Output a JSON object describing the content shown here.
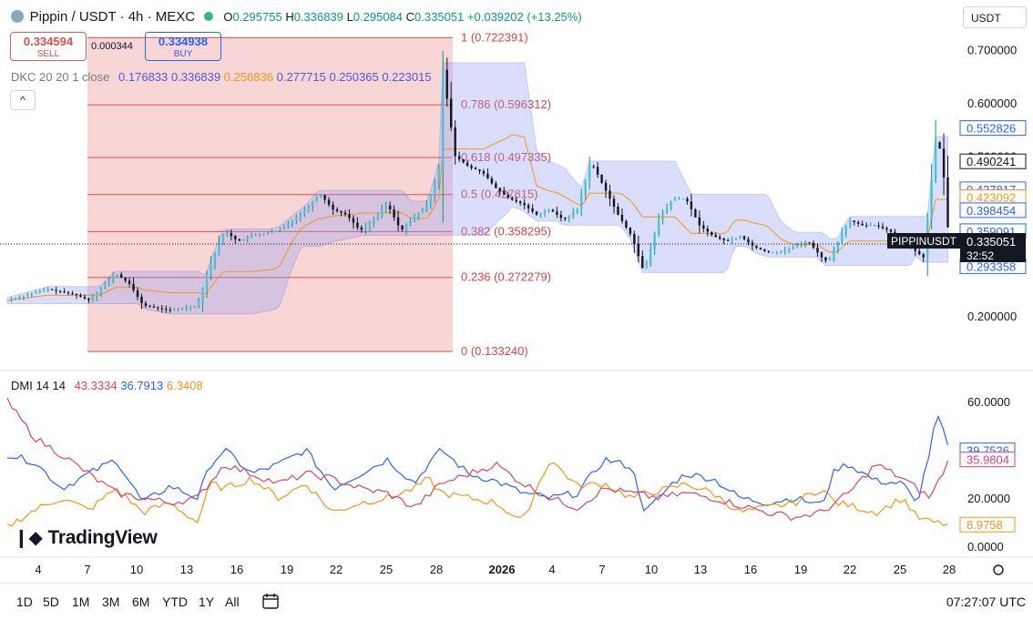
{
  "header": {
    "symbol": "Pippin / USDT · 4h · MEXC",
    "open_label": "O",
    "open": "0.295755",
    "high_label": "H",
    "high": "0.336839",
    "low_label": "L",
    "low": "0.295084",
    "close_label": "C",
    "close": "0.335051",
    "change": "+0.039202 (+13.25%)",
    "currency": "USDT"
  },
  "trade": {
    "sell_price": "0.334594",
    "sell_label": "SELL",
    "spread": "0.000344",
    "buy_price": "0.334938",
    "buy_label": "BUY"
  },
  "dkc_legend": {
    "name": "DKC 20 20 1 close",
    "values": [
      "0.176833",
      "0.336839",
      "0.256836",
      "0.277715",
      "0.250365",
      "0.223015"
    ]
  },
  "dmi_legend": {
    "name": "DMI 14 14",
    "values": [
      "43.3334",
      "36.7913",
      "6.3408"
    ]
  },
  "bottom": {
    "timeframes": [
      "1D",
      "5D",
      "1M",
      "3M",
      "6M",
      "YTD",
      "1Y",
      "All"
    ],
    "time": "07:27:07 UTC"
  },
  "brand": "TradingView",
  "colors": {
    "up": "#089981",
    "down": "#131722",
    "fib_fill": "#f6c8c8",
    "fib_line": "#e04e4e",
    "channel": "#4a5ae8",
    "dmi_plus": "#2962ff",
    "dmi_minus": "#f7931a",
    "adx": "#d6456b"
  },
  "chart_data": [
    {
      "type": "candlestick",
      "title": "Pippin / USDT · 4h · MEXC",
      "ylim": [
        0.13,
        0.74
      ],
      "y_ticks": [
        0.2,
        0.3,
        0.4,
        0.5,
        0.6,
        0.7
      ],
      "y_tick_labels": [
        "0.200000",
        "",
        "",
        "0.500000",
        "0.600000",
        "0.700000"
      ],
      "x_tick_labels": [
        "4",
        "7",
        "10",
        "13",
        "16",
        "19",
        "22",
        "25",
        "28",
        "2026",
        "4",
        "7",
        "10",
        "13",
        "16",
        "19",
        "22",
        "25",
        "28"
      ],
      "price_path": [
        [
          0,
          0.23
        ],
        [
          3,
          0.25
        ],
        [
          5,
          0.24
        ],
        [
          6,
          0.23
        ],
        [
          8,
          0.28
        ],
        [
          9,
          0.26
        ],
        [
          10,
          0.22
        ],
        [
          12,
          0.21
        ],
        [
          14,
          0.22
        ],
        [
          15,
          0.3
        ],
        [
          16,
          0.36
        ],
        [
          17,
          0.34
        ],
        [
          18,
          0.35
        ],
        [
          20,
          0.36
        ],
        [
          21,
          0.38
        ],
        [
          22,
          0.4
        ],
        [
          23,
          0.43
        ],
        [
          24,
          0.4
        ],
        [
          25,
          0.39
        ],
        [
          26,
          0.36
        ],
        [
          27,
          0.38
        ],
        [
          28,
          0.41
        ],
        [
          29,
          0.36
        ],
        [
          31,
          0.41
        ],
        [
          31.8,
          0.48
        ],
        [
          32,
          0.68
        ],
        [
          33,
          0.5
        ],
        [
          34,
          0.48
        ],
        [
          35,
          0.47
        ],
        [
          36,
          0.44
        ],
        [
          37,
          0.42
        ],
        [
          38,
          0.41
        ],
        [
          39,
          0.39
        ],
        [
          40,
          0.4
        ],
        [
          41,
          0.38
        ],
        [
          42,
          0.4
        ],
        [
          43,
          0.49
        ],
        [
          44,
          0.44
        ],
        [
          45,
          0.39
        ],
        [
          46,
          0.35
        ],
        [
          46.8,
          0.29
        ],
        [
          47,
          0.29
        ],
        [
          48,
          0.38
        ],
        [
          49,
          0.42
        ],
        [
          50,
          0.42
        ],
        [
          51,
          0.37
        ],
        [
          52,
          0.35
        ],
        [
          53,
          0.34
        ],
        [
          54,
          0.35
        ],
        [
          55,
          0.33
        ],
        [
          56,
          0.32
        ],
        [
          57,
          0.32
        ],
        [
          58,
          0.33
        ],
        [
          59,
          0.34
        ],
        [
          60,
          0.31
        ],
        [
          60.5,
          0.3
        ],
        [
          61,
          0.33
        ],
        [
          62,
          0.38
        ],
        [
          63,
          0.37
        ],
        [
          64,
          0.37
        ],
        [
          65,
          0.36
        ],
        [
          66,
          0.34
        ],
        [
          67,
          0.32
        ],
        [
          67.5,
          0.31
        ],
        [
          68,
          0.43
        ],
        [
          68.5,
          0.55
        ],
        [
          69,
          0.46
        ],
        [
          69.4,
          0.335051
        ]
      ],
      "fibonacci": [
        {
          "level": "1",
          "value": 0.722391
        },
        {
          "level": "0.786",
          "value": 0.596312
        },
        {
          "level": "0.618",
          "value": 0.497335
        },
        {
          "level": "0.5",
          "value": 0.427815
        },
        {
          "level": "0.382",
          "value": 0.358295
        },
        {
          "level": "0.236",
          "value": 0.272279
        },
        {
          "level": "0",
          "value": 0.13324
        }
      ],
      "price_tags": [
        {
          "value": 0.552826,
          "kind": "upper"
        },
        {
          "value": 0.490241,
          "kind": "dark"
        },
        {
          "value": 0.437817,
          "kind": "blue"
        },
        {
          "value": 0.423092,
          "kind": "orange"
        },
        {
          "value": 0.398454,
          "kind": "blue"
        },
        {
          "value": 0.359091,
          "kind": "blue"
        },
        {
          "value": 0.293358,
          "kind": "blue"
        }
      ],
      "last_price": {
        "symbol": "PIPPINUSDT",
        "value": "0.335051",
        "countdown": "32:52"
      }
    },
    {
      "type": "line",
      "title": "DMI 14 14",
      "ylim": [
        0,
        65
      ],
      "y_ticks": [
        0,
        20,
        40,
        60
      ],
      "y_tick_labels": [
        "0.0000",
        "20.0000",
        "",
        "60.0000"
      ],
      "series": [
        {
          "key": "plus_di",
          "color": "#2962ff",
          "values": [
            [
              0,
              38
            ],
            [
              2,
              35
            ],
            [
              4,
              24
            ],
            [
              6,
              30
            ],
            [
              8,
              36
            ],
            [
              10,
              18
            ],
            [
              12,
              25
            ],
            [
              14,
              20
            ],
            [
              15,
              34
            ],
            [
              16,
              40
            ],
            [
              18,
              30
            ],
            [
              20,
              34
            ],
            [
              22,
              40
            ],
            [
              24,
              24
            ],
            [
              26,
              30
            ],
            [
              28,
              36
            ],
            [
              30,
              26
            ],
            [
              31,
              34
            ],
            [
              32,
              40
            ],
            [
              34,
              30
            ],
            [
              36,
              27
            ],
            [
              38,
              22
            ],
            [
              40,
              20
            ],
            [
              42,
              22
            ],
            [
              44,
              36
            ],
            [
              46,
              33
            ],
            [
              47,
              14
            ],
            [
              49,
              26
            ],
            [
              50,
              30
            ],
            [
              52,
              28
            ],
            [
              54,
              20
            ],
            [
              56,
              18
            ],
            [
              58,
              20
            ],
            [
              60,
              17
            ],
            [
              61,
              32
            ],
            [
              62,
              34
            ],
            [
              64,
              27
            ],
            [
              66,
              26
            ],
            [
              67,
              17
            ],
            [
              68,
              40
            ],
            [
              68.5,
              55
            ],
            [
              69.4,
              39.75
            ]
          ]
        },
        {
          "key": "minus_di",
          "color": "#f7931a",
          "values": [
            [
              0,
              8
            ],
            [
              2,
              15
            ],
            [
              4,
              20
            ],
            [
              6,
              15
            ],
            [
              8,
              24
            ],
            [
              10,
              14
            ],
            [
              12,
              18
            ],
            [
              14,
              10
            ],
            [
              15,
              26
            ],
            [
              16,
              24
            ],
            [
              18,
              28
            ],
            [
              20,
              20
            ],
            [
              22,
              26
            ],
            [
              24,
              14
            ],
            [
              26,
              18
            ],
            [
              28,
              20
            ],
            [
              30,
              24
            ],
            [
              31,
              28
            ],
            [
              32,
              22
            ],
            [
              34,
              20
            ],
            [
              36,
              18
            ],
            [
              38,
              10
            ],
            [
              39,
              24
            ],
            [
              40,
              36
            ],
            [
              42,
              25
            ],
            [
              44,
              26
            ],
            [
              46,
              20
            ],
            [
              47,
              22
            ],
            [
              49,
              24
            ],
            [
              50,
              26
            ],
            [
              52,
              22
            ],
            [
              54,
              14
            ],
            [
              56,
              16
            ],
            [
              58,
              18
            ],
            [
              60,
              24
            ],
            [
              61,
              18
            ],
            [
              62,
              17
            ],
            [
              64,
              14
            ],
            [
              66,
              20
            ],
            [
              67,
              12
            ],
            [
              68,
              10
            ],
            [
              69.4,
              8.98
            ]
          ]
        },
        {
          "key": "adx",
          "color": "#d6456b",
          "values": [
            [
              0,
              60
            ],
            [
              2,
              45
            ],
            [
              4,
              38
            ],
            [
              6,
              30
            ],
            [
              8,
              22
            ],
            [
              10,
              20
            ],
            [
              12,
              18
            ],
            [
              14,
              20
            ],
            [
              16,
              34
            ],
            [
              18,
              30
            ],
            [
              20,
              26
            ],
            [
              22,
              30
            ],
            [
              24,
              28
            ],
            [
              26,
              24
            ],
            [
              28,
              22
            ],
            [
              30,
              16
            ],
            [
              32,
              26
            ],
            [
              34,
              30
            ],
            [
              36,
              34
            ],
            [
              38,
              26
            ],
            [
              40,
              20
            ],
            [
              42,
              16
            ],
            [
              44,
              24
            ],
            [
              46,
              22
            ],
            [
              48,
              20
            ],
            [
              50,
              22
            ],
            [
              52,
              20
            ],
            [
              54,
              17
            ],
            [
              56,
              14
            ],
            [
              58,
              12
            ],
            [
              60,
              14
            ],
            [
              62,
              22
            ],
            [
              64,
              34
            ],
            [
              66,
              28
            ],
            [
              68,
              20
            ],
            [
              69.4,
              35.98
            ]
          ]
        }
      ],
      "price_tags": [
        {
          "value": 39.7526,
          "color": "#2962ff"
        },
        {
          "value": 35.9804,
          "color": "#d6456b"
        },
        {
          "value": 8.9758,
          "color": "#f7931a"
        }
      ]
    }
  ]
}
